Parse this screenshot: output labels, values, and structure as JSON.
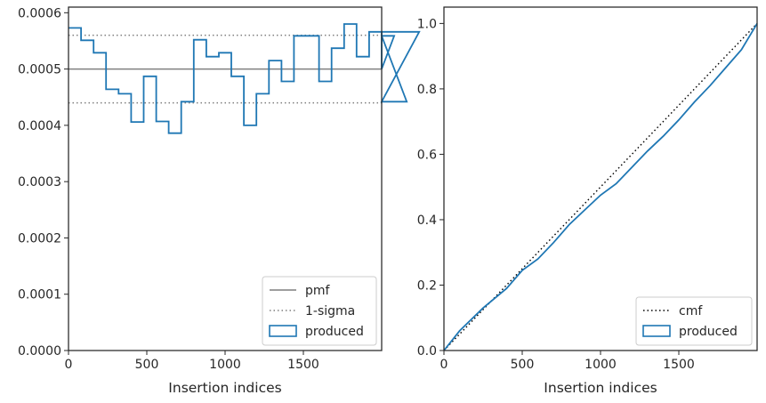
{
  "chart_data": [
    {
      "type": "step",
      "xlabel": "Insertion indices",
      "ylabel": "",
      "xlim": [
        0,
        2000
      ],
      "ylim": [
        0,
        0.00061
      ],
      "xticks": [
        0,
        500,
        1000,
        1500
      ],
      "xtick_labels": [
        "0",
        "500",
        "1000",
        "1500"
      ],
      "yticks": [
        0,
        0.0001,
        0.0002,
        0.0003,
        0.0004,
        0.0005,
        0.0006
      ],
      "ytick_labels": [
        "0.0000",
        "0.0001",
        "0.0002",
        "0.0003",
        "0.0004",
        "0.0005",
        "0.0006"
      ],
      "grid": false,
      "legend": {
        "placement": "lower-right",
        "entries": [
          "pmf",
          "1-sigma",
          "produced"
        ]
      },
      "reference_lines": [
        {
          "name": "pmf",
          "y": 0.0005,
          "style": "solid",
          "color": "#7f7f7f"
        },
        {
          "name": "1-sigma",
          "y": 0.00056,
          "style": "dotted",
          "color": "#7f7f7f"
        },
        {
          "name": "1-sigma",
          "y": 0.00044,
          "style": "dotted",
          "color": "#7f7f7f"
        }
      ],
      "series": [
        {
          "name": "produced",
          "color": "#1f77b4",
          "bin_width": 80,
          "bin_edges_start": 0,
          "values": [
            0.000573,
            0.000551,
            0.000529,
            0.000464,
            0.000456,
            0.000406,
            0.000487,
            0.000407,
            0.000386,
            0.000442,
            0.000552,
            0.000522,
            0.000529,
            0.000487,
            0.0004,
            0.000456,
            0.000515,
            0.000478,
            0.000559,
            0.000559,
            0.000478,
            0.000537,
            0.00058,
            0.000522,
            0.000566,
            0.0005,
            0.000559,
            0.000442,
            0.000566
          ]
        }
      ]
    },
    {
      "type": "line",
      "xlabel": "Insertion indices",
      "ylabel": "",
      "xlim": [
        0,
        2000
      ],
      "ylim": [
        0,
        1.05
      ],
      "xticks": [
        0,
        500,
        1000,
        1500
      ],
      "xtick_labels": [
        "0",
        "500",
        "1000",
        "1500"
      ],
      "yticks": [
        0,
        0.2,
        0.4,
        0.6,
        0.8,
        1.0
      ],
      "ytick_labels": [
        "0.0",
        "0.2",
        "0.4",
        "0.6",
        "0.8",
        "1.0"
      ],
      "grid": false,
      "legend": {
        "placement": "lower-right",
        "entries": [
          "cmf",
          "produced"
        ]
      },
      "series": [
        {
          "name": "cmf",
          "style": "dotted",
          "color": "#000000",
          "x": [
            0,
            2000
          ],
          "y": [
            0,
            1.0
          ]
        },
        {
          "name": "produced",
          "color": "#1f77b4",
          "x": [
            0,
            100,
            250,
            400,
            500,
            600,
            700,
            800,
            900,
            1000,
            1100,
            1200,
            1300,
            1400,
            1500,
            1600,
            1700,
            1800,
            1900,
            2000
          ],
          "y": [
            0,
            0.06,
            0.13,
            0.19,
            0.245,
            0.28,
            0.33,
            0.385,
            0.43,
            0.475,
            0.51,
            0.56,
            0.61,
            0.655,
            0.705,
            0.76,
            0.81,
            0.865,
            0.92,
            1.0
          ]
        }
      ]
    }
  ]
}
